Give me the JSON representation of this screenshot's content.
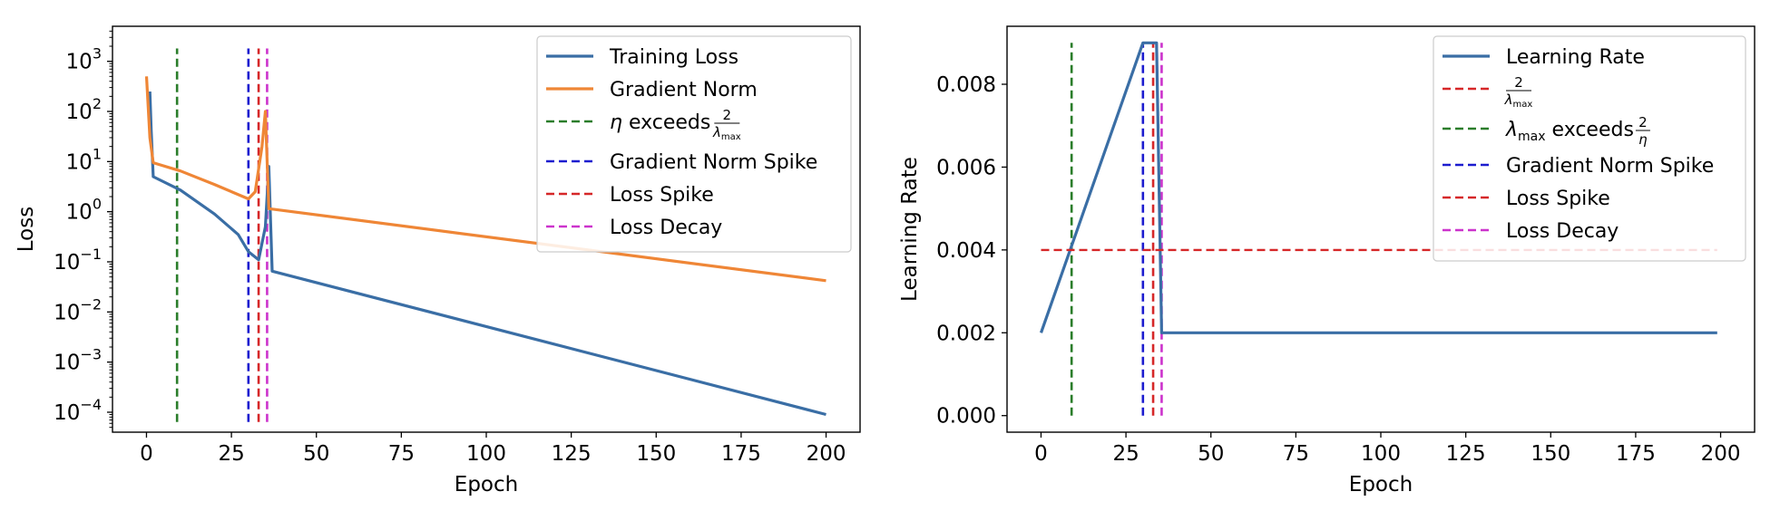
{
  "chart_data": [
    {
      "type": "line",
      "xlabel": "Epoch",
      "ylabel": "Loss",
      "yscale": "log",
      "xlim": [
        -10,
        210
      ],
      "ylim": [
        4e-05,
        5000
      ],
      "xticks": [
        0,
        25,
        50,
        75,
        100,
        125,
        150,
        175,
        200
      ],
      "xtick_labels": [
        "0",
        "25",
        "50",
        "75",
        "100",
        "125",
        "150",
        "175",
        "200"
      ],
      "yticks": [
        0.0001,
        0.001,
        0.01,
        0.1,
        1,
        10,
        100,
        1000
      ],
      "ytick_labels": [
        {
          "base": "10",
          "exp": "−4"
        },
        {
          "base": "10",
          "exp": "−3"
        },
        {
          "base": "10",
          "exp": "−2"
        },
        {
          "base": "10",
          "exp": "−1"
        },
        {
          "base": "10",
          "exp": "0"
        },
        {
          "base": "10",
          "exp": "1"
        },
        {
          "base": "10",
          "exp": "2"
        },
        {
          "base": "10",
          "exp": "3"
        }
      ],
      "legend_position": "top-right",
      "series": [
        {
          "name": "Training Loss",
          "color": "#3a6ea5",
          "style": "solid",
          "points": [
            [
              1,
              250
            ],
            [
              1.4,
              40
            ],
            [
              2,
              5
            ],
            [
              10,
              2.7
            ],
            [
              20,
              0.9
            ],
            [
              27,
              0.35
            ],
            [
              30,
              0.16
            ],
            [
              33,
              0.11
            ],
            [
              35,
              0.5
            ],
            [
              36,
              8
            ],
            [
              37,
              0.065
            ],
            [
              200,
              9e-05
            ]
          ]
        },
        {
          "name": "Gradient Norm",
          "color": "#ef8636",
          "style": "solid",
          "points": [
            [
              0,
              500
            ],
            [
              1,
              30
            ],
            [
              2,
              9.5
            ],
            [
              10,
              6.5
            ],
            [
              20,
              3.5
            ],
            [
              30,
              1.8
            ],
            [
              32,
              2.5
            ],
            [
              34,
              20
            ],
            [
              35,
              100
            ],
            [
              36,
              1.15
            ],
            [
              200,
              0.042
            ]
          ]
        }
      ],
      "vlines": [
        {
          "x": 9,
          "color": "#2a7d2a",
          "ymax": 1800
        },
        {
          "x": 30,
          "color": "#1c1ccf",
          "ymax": 1800
        },
        {
          "x": 33,
          "color": "#d62728",
          "ymax": 1800
        },
        {
          "x": 35.5,
          "color": "#cc33cc",
          "ymax": 1800
        }
      ],
      "legend": [
        {
          "label": "Training Loss",
          "color": "#3a6ea5",
          "style": "solid",
          "math": "none"
        },
        {
          "label": "Gradient Norm",
          "color": "#ef8636",
          "style": "solid",
          "math": "none"
        },
        {
          "label": " exceeds ",
          "color": "#2a7d2a",
          "style": "dashed",
          "math": "eta-exceeds"
        },
        {
          "label": "Gradient Norm Spike",
          "color": "#1c1ccf",
          "style": "dashed",
          "math": "none"
        },
        {
          "label": "Loss Spike",
          "color": "#d62728",
          "style": "dashed",
          "math": "none"
        },
        {
          "label": "Loss Decay",
          "color": "#cc33cc",
          "style": "dashed",
          "math": "none"
        }
      ]
    },
    {
      "type": "line",
      "xlabel": "Epoch",
      "ylabel": "Learning Rate",
      "yscale": "linear",
      "xlim": [
        -10,
        210
      ],
      "ylim": [
        -0.0004,
        0.0094
      ],
      "xticks": [
        0,
        25,
        50,
        75,
        100,
        125,
        150,
        175,
        200
      ],
      "xtick_labels": [
        "0",
        "25",
        "50",
        "75",
        "100",
        "125",
        "150",
        "175",
        "200"
      ],
      "yticks": [
        0,
        0.002,
        0.004,
        0.006,
        0.008
      ],
      "ytick_labels": [
        "0.000",
        "0.002",
        "0.004",
        "0.006",
        "0.008"
      ],
      "legend_position": "top-right",
      "series": [
        {
          "name": "Learning Rate",
          "color": "#3a6ea5",
          "style": "solid",
          "points": [
            [
              0,
              0.002
            ],
            [
              30,
              0.009
            ],
            [
              34,
              0.009
            ],
            [
              35.5,
              0.002
            ],
            [
              199,
              0.002
            ]
          ]
        },
        {
          "name": "",
          "color": "#d62728",
          "style": "dashed",
          "points": [
            [
              0,
              0.004
            ],
            [
              199,
              0.004
            ]
          ]
        }
      ],
      "vlines": [
        {
          "x": 9,
          "color": "#2a7d2a",
          "ymax": 0.009
        },
        {
          "x": 30,
          "color": "#1c1ccf",
          "ymax": 0.009
        },
        {
          "x": 33,
          "color": "#d62728",
          "ymax": 0.009
        },
        {
          "x": 35.5,
          "color": "#cc33cc",
          "ymax": 0.009
        }
      ],
      "legend": [
        {
          "label": "Learning Rate",
          "color": "#3a6ea5",
          "style": "solid",
          "math": "none"
        },
        {
          "label": "",
          "color": "#d62728",
          "style": "dashed",
          "math": "two-over-lambda"
        },
        {
          "label": " exceeds ",
          "color": "#2a7d2a",
          "style": "dashed",
          "math": "lambda-exceeds"
        },
        {
          "label": "Gradient Norm Spike",
          "color": "#1c1ccf",
          "style": "dashed",
          "math": "none"
        },
        {
          "label": "Loss Spike",
          "color": "#d62728",
          "style": "dashed",
          "math": "none"
        },
        {
          "label": "Loss Decay",
          "color": "#cc33cc",
          "style": "dashed",
          "math": "none"
        }
      ]
    }
  ]
}
